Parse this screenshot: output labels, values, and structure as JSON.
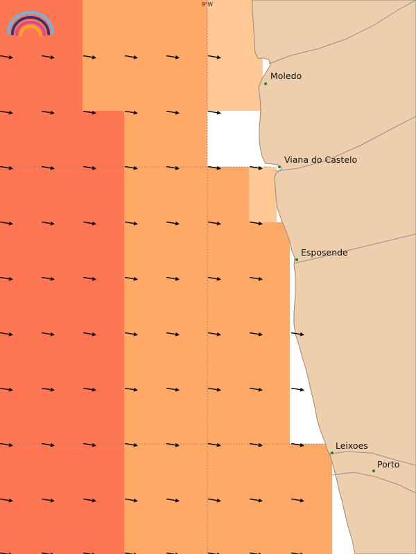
{
  "map": {
    "longitude_label": "9°W",
    "colors": {
      "sea_strong": "#ff7752",
      "sea_moderate": "#ffa967",
      "sea_light": "#ffc894",
      "land": "#eecfad",
      "coast": "#9a8672",
      "river": "#8f8f8f",
      "place_dot": "#1a8a1a",
      "arrow": "#111111",
      "grid": "#808080"
    },
    "places": [
      {
        "name": "Moledo"
      },
      {
        "name": "Viana do Castelo"
      },
      {
        "name": "Esposende"
      },
      {
        "name": "Leixoes"
      },
      {
        "name": "Porto"
      }
    ],
    "logo": {
      "name": "rainbow-logo-icon"
    }
  }
}
